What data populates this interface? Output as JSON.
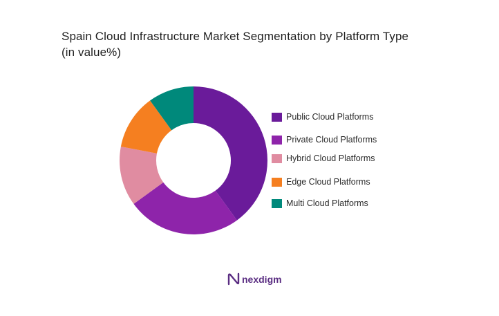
{
  "title": {
    "line1": "Spain Cloud Infrastructure Market Segmentation by Platform Type",
    "line2": "(in value%)"
  },
  "chart_data": {
    "type": "pie",
    "donut": true,
    "categories": [
      "Public Cloud Platforms",
      "Private Cloud Platforms",
      "Hybrid Cloud Platforms",
      "Edge Cloud Platforms",
      "Multi Cloud Platforms"
    ],
    "values": [
      40,
      25,
      13,
      12,
      10
    ],
    "colors": [
      "#6a1b9a",
      "#8e24aa",
      "#e08ca1",
      "#f57f20",
      "#00897b"
    ],
    "legend": "right"
  },
  "brand": {
    "name": "nexdigm",
    "color": "#5a2d82"
  }
}
